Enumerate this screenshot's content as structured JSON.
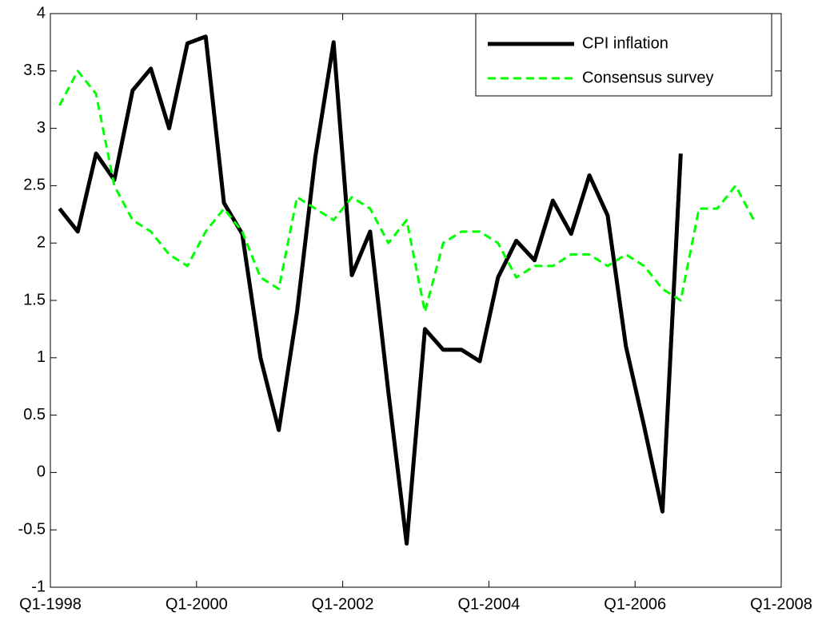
{
  "chart_data": {
    "type": "line",
    "x": [
      "Q1-1998",
      "Q2-1998",
      "Q3-1998",
      "Q4-1998",
      "Q1-1999",
      "Q2-1999",
      "Q3-1999",
      "Q4-1999",
      "Q1-2000",
      "Q2-2000",
      "Q3-2000",
      "Q4-2000",
      "Q1-2001",
      "Q2-2001",
      "Q3-2001",
      "Q4-2001",
      "Q1-2002",
      "Q2-2002",
      "Q3-2002",
      "Q4-2002",
      "Q1-2003",
      "Q2-2003",
      "Q3-2003",
      "Q4-2003",
      "Q1-2004",
      "Q2-2004",
      "Q3-2004",
      "Q4-2004",
      "Q1-2005",
      "Q2-2005",
      "Q3-2005",
      "Q4-2005",
      "Q1-2006",
      "Q2-2006",
      "Q3-2006",
      "Q4-2006",
      "Q1-2007",
      "Q2-2007",
      "Q3-2007"
    ],
    "series": [
      {
        "name": "CPI inflation",
        "color": "#000000",
        "style": "solid",
        "values": [
          2.3,
          2.1,
          2.78,
          2.55,
          3.33,
          3.52,
          3.0,
          3.74,
          3.8,
          2.35,
          2.08,
          1.0,
          0.37,
          1.4,
          2.75,
          3.75,
          1.72,
          2.1,
          0.7,
          -0.62,
          1.25,
          1.07,
          1.07,
          0.97,
          1.7,
          2.02,
          1.85,
          2.37,
          2.08,
          2.59,
          2.24,
          1.1,
          0.4,
          -0.34,
          2.78,
          null,
          null,
          null,
          null
        ]
      },
      {
        "name": "Consensus survey",
        "color": "#00ff00",
        "style": "dashed",
        "values": [
          3.2,
          3.5,
          3.3,
          2.5,
          2.2,
          2.1,
          1.9,
          1.8,
          2.1,
          2.3,
          2.1,
          1.7,
          1.6,
          2.4,
          2.3,
          2.2,
          2.4,
          2.3,
          2.0,
          2.2,
          1.4,
          2.0,
          2.1,
          2.1,
          2.0,
          1.7,
          1.8,
          1.8,
          1.9,
          1.9,
          1.8,
          1.9,
          1.8,
          1.6,
          1.5,
          2.3,
          2.3,
          2.5,
          2.2
        ]
      }
    ],
    "xlim": [
      "Q1-1998",
      "Q1-2008"
    ],
    "xticks": [
      "Q1-1998",
      "Q1-2000",
      "Q1-2002",
      "Q1-2004",
      "Q1-2006",
      "Q1-2008"
    ],
    "ylim": [
      -1,
      4
    ],
    "yticks": [
      -1,
      -0.5,
      0,
      0.5,
      1,
      1.5,
      2,
      2.5,
      3,
      3.5,
      4
    ],
    "grid": false,
    "legend": "upper right"
  }
}
